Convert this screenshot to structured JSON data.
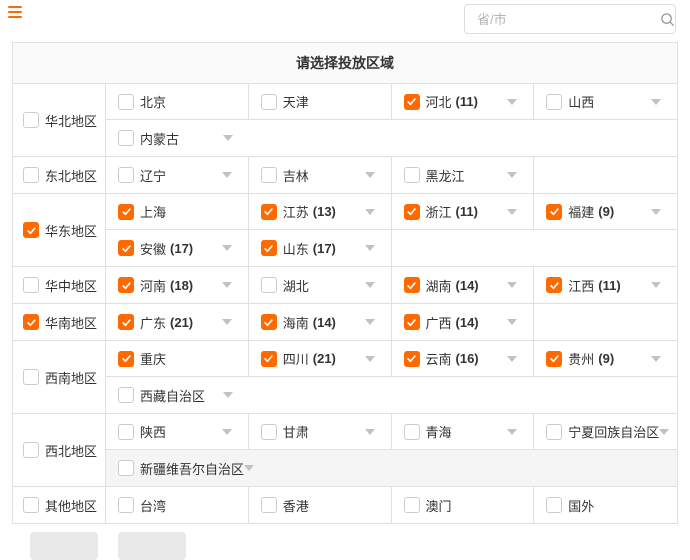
{
  "topbar": {
    "menu_icon": "hamburger-menu",
    "search": {
      "placeholder": "省/市",
      "icon": "magnifier"
    }
  },
  "panel": {
    "title": "请选择投放区域"
  },
  "colors": {
    "accent": "#ff6a00",
    "border": "#e0e0e0",
    "header_bg": "#fafafa",
    "highlight_row_bg": "#f5f5f5",
    "arrow": "#c2c2c2"
  },
  "regions": [
    {
      "label": "华北地区",
      "checked": false,
      "lines": [
        {
          "highlight": false,
          "cells": [
            {
              "label": "北京",
              "count": "",
              "checked": false,
              "expandable": false
            },
            {
              "label": "天津",
              "count": "",
              "checked": false,
              "expandable": false
            },
            {
              "label": "河北",
              "count": "(11)",
              "checked": true,
              "expandable": true
            },
            {
              "label": "山西",
              "count": "",
              "checked": false,
              "expandable": true
            }
          ]
        },
        {
          "highlight": false,
          "cells": [
            {
              "label": "内蒙古",
              "count": "",
              "checked": false,
              "expandable": true
            }
          ]
        }
      ]
    },
    {
      "label": "东北地区",
      "checked": false,
      "lines": [
        {
          "highlight": false,
          "cells": [
            {
              "label": "辽宁",
              "count": "",
              "checked": false,
              "expandable": true
            },
            {
              "label": "吉林",
              "count": "",
              "checked": false,
              "expandable": true
            },
            {
              "label": "黑龙江",
              "count": "",
              "checked": false,
              "expandable": true
            }
          ]
        }
      ]
    },
    {
      "label": "华东地区",
      "checked": true,
      "lines": [
        {
          "highlight": false,
          "cells": [
            {
              "label": "上海",
              "count": "",
              "checked": true,
              "expandable": false
            },
            {
              "label": "江苏",
              "count": "(13)",
              "checked": true,
              "expandable": true
            },
            {
              "label": "浙江",
              "count": "(11)",
              "checked": true,
              "expandable": true
            },
            {
              "label": "福建",
              "count": "(9)",
              "checked": true,
              "expandable": true
            }
          ]
        },
        {
          "highlight": false,
          "cells": [
            {
              "label": "安徽",
              "count": "(17)",
              "checked": true,
              "expandable": true
            },
            {
              "label": "山东",
              "count": "(17)",
              "checked": true,
              "expandable": true
            }
          ]
        }
      ]
    },
    {
      "label": "华中地区",
      "checked": false,
      "lines": [
        {
          "highlight": false,
          "cells": [
            {
              "label": "河南",
              "count": "(18)",
              "checked": true,
              "expandable": true
            },
            {
              "label": "湖北",
              "count": "",
              "checked": false,
              "expandable": true
            },
            {
              "label": "湖南",
              "count": "(14)",
              "checked": true,
              "expandable": true
            },
            {
              "label": "江西",
              "count": "(11)",
              "checked": true,
              "expandable": true
            }
          ]
        }
      ]
    },
    {
      "label": "华南地区",
      "checked": true,
      "lines": [
        {
          "highlight": false,
          "cells": [
            {
              "label": "广东",
              "count": "(21)",
              "checked": true,
              "expandable": true
            },
            {
              "label": "海南",
              "count": "(14)",
              "checked": true,
              "expandable": true
            },
            {
              "label": "广西",
              "count": "(14)",
              "checked": true,
              "expandable": true
            }
          ]
        }
      ]
    },
    {
      "label": "西南地区",
      "checked": false,
      "lines": [
        {
          "highlight": false,
          "cells": [
            {
              "label": "重庆",
              "count": "",
              "checked": true,
              "expandable": false
            },
            {
              "label": "四川",
              "count": "(21)",
              "checked": true,
              "expandable": true
            },
            {
              "label": "云南",
              "count": "(16)",
              "checked": true,
              "expandable": true
            },
            {
              "label": "贵州",
              "count": "(9)",
              "checked": true,
              "expandable": true
            }
          ]
        },
        {
          "highlight": false,
          "cells": [
            {
              "label": "西藏自治区",
              "count": "",
              "checked": false,
              "expandable": true
            }
          ]
        }
      ]
    },
    {
      "label": "西北地区",
      "checked": false,
      "lines": [
        {
          "highlight": false,
          "cells": [
            {
              "label": "陕西",
              "count": "",
              "checked": false,
              "expandable": true
            },
            {
              "label": "甘肃",
              "count": "",
              "checked": false,
              "expandable": true
            },
            {
              "label": "青海",
              "count": "",
              "checked": false,
              "expandable": true
            },
            {
              "label": "宁夏回族自治区",
              "count": "",
              "checked": false,
              "expandable": true
            }
          ]
        },
        {
          "highlight": true,
          "cells": [
            {
              "label": "新疆维吾尔自治区",
              "count": "",
              "checked": false,
              "expandable": true
            }
          ]
        }
      ]
    },
    {
      "label": "其他地区",
      "checked": false,
      "lines": [
        {
          "highlight": false,
          "cells": [
            {
              "label": "台湾",
              "count": "",
              "checked": false,
              "expandable": false
            },
            {
              "label": "香港",
              "count": "",
              "checked": false,
              "expandable": false
            },
            {
              "label": "澳门",
              "count": "",
              "checked": false,
              "expandable": false
            },
            {
              "label": "国外",
              "count": "",
              "checked": false,
              "expandable": false
            }
          ]
        }
      ]
    }
  ],
  "footer": {
    "button_count": 2
  }
}
